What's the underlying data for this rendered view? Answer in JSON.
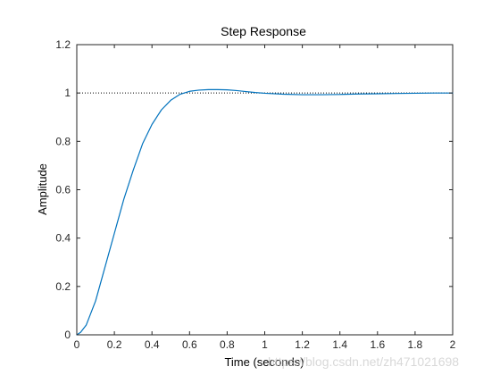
{
  "chart_data": {
    "type": "line",
    "title": "Step Response",
    "xlabel": "Time (seconds)",
    "ylabel": "Amplitude",
    "xlim": [
      0,
      2
    ],
    "ylim": [
      0,
      1.2
    ],
    "grid": false,
    "xticks": [
      0,
      0.2,
      0.4,
      0.6,
      0.8,
      1,
      1.2,
      1.4,
      1.6,
      1.8,
      2
    ],
    "xtick_labels": [
      "0",
      "0.2",
      "0.4",
      "0.6",
      "0.8",
      "1",
      "1.2",
      "1.4",
      "1.6",
      "1.8",
      "2"
    ],
    "yticks": [
      0,
      0.2,
      0.4,
      0.6,
      0.8,
      1,
      1.2
    ],
    "ytick_labels": [
      "0",
      "0.2",
      "0.4",
      "0.6",
      "0.8",
      "1",
      "1.2"
    ],
    "reference_line": {
      "y": 1,
      "style": "dotted",
      "color": "#000000"
    },
    "series": [
      {
        "color": "#0072BD",
        "x": [
          0,
          0.02,
          0.05,
          0.1,
          0.15,
          0.2,
          0.25,
          0.3,
          0.35,
          0.4,
          0.45,
          0.5,
          0.55,
          0.6,
          0.65,
          0.7,
          0.75,
          0.8,
          0.85,
          0.9,
          0.95,
          1.0,
          1.1,
          1.2,
          1.3,
          1.4,
          1.5,
          1.6,
          1.7,
          1.8,
          1.9,
          2.0
        ],
        "y": [
          0,
          0.01,
          0.04,
          0.14,
          0.28,
          0.42,
          0.56,
          0.68,
          0.79,
          0.87,
          0.93,
          0.97,
          0.995,
          1.007,
          1.012,
          1.014,
          1.014,
          1.013,
          1.01,
          1.006,
          1.002,
          0.999,
          0.995,
          0.993,
          0.993,
          0.994,
          0.996,
          0.997,
          0.998,
          0.999,
          1.0,
          1.0
        ]
      }
    ]
  },
  "watermark": "https://blog.csdn.net/zh471021698"
}
